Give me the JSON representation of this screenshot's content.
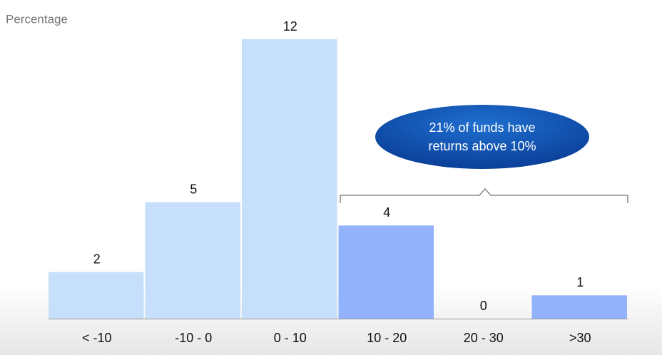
{
  "chart_data": {
    "type": "bar",
    "axis_label": "Percentage",
    "categories": [
      "< -10",
      "-10 - 0",
      "0 - 10",
      "10 - 20",
      "20 - 30",
      ">30"
    ],
    "values": [
      2,
      5,
      12,
      4,
      0,
      1
    ],
    "colors": [
      "#c6dffa",
      "#c6dffa",
      "#c6dffa",
      "#92b2fb",
      "#92b2fb",
      "#92b2fb"
    ],
    "annotation": "21% of funds have returns above 10%"
  }
}
